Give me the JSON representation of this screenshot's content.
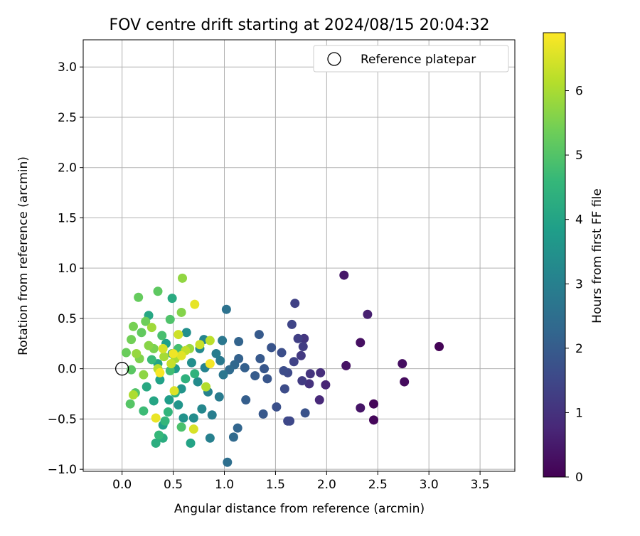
{
  "chart_data": {
    "type": "scatter",
    "title": "FOV centre drift starting at 2024/08/15 20:04:32",
    "xlabel": "Angular distance from reference (arcmin)",
    "ylabel": "Rotation from reference (arcmin)",
    "xlim": [
      -0.38,
      3.84
    ],
    "ylim": [
      -1.02,
      3.27
    ],
    "x_ticks": [
      0.0,
      0.5,
      1.0,
      1.5,
      2.0,
      2.5,
      3.0,
      3.5
    ],
    "x_tick_labels": [
      "0.0",
      "0.5",
      "1.0",
      "1.5",
      "2.0",
      "2.5",
      "3.0",
      "3.5"
    ],
    "y_ticks": [
      -1.0,
      -0.5,
      0.0,
      0.5,
      1.0,
      1.5,
      2.0,
      2.5,
      3.0
    ],
    "y_tick_labels": [
      "−1.0",
      "−0.5",
      "0.0",
      "0.5",
      "1.0",
      "1.5",
      "2.0",
      "2.5",
      "3.0"
    ],
    "grid": true,
    "legend": {
      "placement": "top-right",
      "entries": [
        "Reference platepar"
      ]
    },
    "reference_point": {
      "x": 0.0,
      "y": 0.0,
      "label": "Reference platepar"
    },
    "colorbar": {
      "label": "Hours from first FF file",
      "colormap": "viridis",
      "range": [
        0,
        6.9
      ],
      "ticks": [
        0,
        1,
        2,
        3,
        4,
        5,
        6
      ],
      "tick_labels": [
        "0",
        "1",
        "2",
        "3",
        "4",
        "5",
        "6"
      ]
    },
    "colormap_stops": [
      "#440154",
      "#482878",
      "#3e4989",
      "#31688e",
      "#26828e",
      "#1f9e89",
      "#35b779",
      "#6ece58",
      "#b5de2b",
      "#fde725"
    ],
    "series": [
      {
        "points": [
          {
            "x": 3.1,
            "y": 0.22,
            "h": 0.05
          },
          {
            "x": 2.46,
            "y": -0.35,
            "h": 0.1
          },
          {
            "x": 2.46,
            "y": -0.51,
            "h": 0.12
          },
          {
            "x": 2.76,
            "y": -0.13,
            "h": 0.2
          },
          {
            "x": 2.74,
            "y": 0.05,
            "h": 0.25
          },
          {
            "x": 2.33,
            "y": 0.26,
            "h": 0.3
          },
          {
            "x": 2.19,
            "y": 0.03,
            "h": 0.35
          },
          {
            "x": 2.33,
            "y": -0.39,
            "h": 0.4
          },
          {
            "x": 2.17,
            "y": 0.93,
            "h": 0.45
          },
          {
            "x": 2.4,
            "y": 0.54,
            "h": 0.6
          },
          {
            "x": 1.99,
            "y": -0.16,
            "h": 0.7
          },
          {
            "x": 1.93,
            "y": -0.31,
            "h": 0.8
          },
          {
            "x": 1.94,
            "y": -0.04,
            "h": 0.9
          },
          {
            "x": 1.83,
            "y": -0.15,
            "h": 1.0
          },
          {
            "x": 1.84,
            "y": -0.05,
            "h": 1.05
          },
          {
            "x": 1.78,
            "y": 0.3,
            "h": 1.1
          },
          {
            "x": 1.75,
            "y": 0.13,
            "h": 1.15
          },
          {
            "x": 1.76,
            "y": -0.12,
            "h": 1.2
          },
          {
            "x": 1.77,
            "y": 0.22,
            "h": 1.25
          },
          {
            "x": 1.72,
            "y": 0.3,
            "h": 1.3
          },
          {
            "x": 1.69,
            "y": 0.65,
            "h": 1.35
          },
          {
            "x": 1.68,
            "y": 0.07,
            "h": 1.4
          },
          {
            "x": 1.66,
            "y": 0.44,
            "h": 1.45
          },
          {
            "x": 1.62,
            "y": -0.52,
            "h": 1.5
          },
          {
            "x": 1.64,
            "y": -0.52,
            "h": 1.52
          },
          {
            "x": 1.62,
            "y": -0.04,
            "h": 1.55
          },
          {
            "x": 1.59,
            "y": -0.2,
            "h": 1.6
          },
          {
            "x": 1.58,
            "y": -0.02,
            "h": 1.62
          },
          {
            "x": 1.56,
            "y": 0.16,
            "h": 1.65
          },
          {
            "x": 1.51,
            "y": -0.38,
            "h": 1.7
          },
          {
            "x": 1.79,
            "y": -0.44,
            "h": 1.75
          },
          {
            "x": 1.46,
            "y": 0.21,
            "h": 1.8
          },
          {
            "x": 1.42,
            "y": -0.1,
            "h": 1.85
          },
          {
            "x": 1.39,
            "y": 0.0,
            "h": 1.88
          },
          {
            "x": 1.38,
            "y": -0.45,
            "h": 1.9
          },
          {
            "x": 1.35,
            "y": 0.1,
            "h": 1.92
          },
          {
            "x": 1.34,
            "y": 0.34,
            "h": 1.95
          },
          {
            "x": 1.3,
            "y": -0.07,
            "h": 2.0
          },
          {
            "x": 1.21,
            "y": -0.31,
            "h": 2.05
          },
          {
            "x": 1.2,
            "y": 0.01,
            "h": 2.1
          },
          {
            "x": 1.14,
            "y": 0.1,
            "h": 2.15
          },
          {
            "x": 1.14,
            "y": 0.27,
            "h": 2.2
          },
          {
            "x": 1.13,
            "y": -0.59,
            "h": 2.25
          },
          {
            "x": 1.1,
            "y": 0.04,
            "h": 2.3
          },
          {
            "x": 1.09,
            "y": -0.68,
            "h": 2.35
          },
          {
            "x": 1.05,
            "y": -0.01,
            "h": 2.4
          },
          {
            "x": 1.03,
            "y": -0.93,
            "h": 2.5
          },
          {
            "x": 1.02,
            "y": 0.59,
            "h": 2.6
          },
          {
            "x": 0.99,
            "y": -0.06,
            "h": 2.7
          },
          {
            "x": 0.98,
            "y": 0.28,
            "h": 2.75
          },
          {
            "x": 0.96,
            "y": 0.08,
            "h": 2.8
          },
          {
            "x": 0.95,
            "y": -0.28,
            "h": 2.85
          },
          {
            "x": 0.92,
            "y": 0.15,
            "h": 2.9
          },
          {
            "x": 0.88,
            "y": -0.46,
            "h": 2.95
          },
          {
            "x": 0.86,
            "y": -0.69,
            "h": 3.0
          },
          {
            "x": 0.84,
            "y": -0.23,
            "h": 3.05
          },
          {
            "x": 0.81,
            "y": 0.01,
            "h": 3.1
          },
          {
            "x": 0.8,
            "y": 0.29,
            "h": 3.15
          },
          {
            "x": 0.78,
            "y": -0.4,
            "h": 3.2
          },
          {
            "x": 0.76,
            "y": 0.2,
            "h": 3.25
          },
          {
            "x": 0.74,
            "y": -0.13,
            "h": 3.3
          },
          {
            "x": 0.7,
            "y": -0.49,
            "h": 3.35
          },
          {
            "x": 0.68,
            "y": 0.06,
            "h": 3.4
          },
          {
            "x": 0.63,
            "y": 0.36,
            "h": 3.45
          },
          {
            "x": 0.6,
            "y": -0.49,
            "h": 3.5
          },
          {
            "x": 0.58,
            "y": -0.2,
            "h": 3.55
          },
          {
            "x": 0.55,
            "y": -0.36,
            "h": 3.6
          },
          {
            "x": 0.52,
            "y": 0.0,
            "h": 3.7
          },
          {
            "x": 0.49,
            "y": 0.15,
            "h": 3.75
          },
          {
            "x": 0.46,
            "y": -0.31,
            "h": 3.8
          },
          {
            "x": 0.43,
            "y": 0.25,
            "h": 3.85
          },
          {
            "x": 0.4,
            "y": -0.56,
            "h": 3.9
          },
          {
            "x": 0.37,
            "y": -0.11,
            "h": 3.95
          },
          {
            "x": 0.35,
            "y": 0.05,
            "h": 4.0
          },
          {
            "x": 0.67,
            "y": -0.74,
            "h": 4.0
          },
          {
            "x": 0.31,
            "y": -0.32,
            "h": 4.05
          },
          {
            "x": 0.26,
            "y": 0.53,
            "h": 4.1
          },
          {
            "x": 0.24,
            "y": -0.18,
            "h": 4.15
          },
          {
            "x": 0.49,
            "y": 0.7,
            "h": 4.2
          },
          {
            "x": 0.4,
            "y": -0.69,
            "h": 4.25
          },
          {
            "x": 0.33,
            "y": -0.74,
            "h": 4.3
          },
          {
            "x": 0.52,
            "y": -0.24,
            "h": 4.35
          },
          {
            "x": 0.62,
            "y": -0.1,
            "h": 4.4
          },
          {
            "x": 0.71,
            "y": -0.05,
            "h": 4.45
          },
          {
            "x": 0.45,
            "y": -0.43,
            "h": 4.5
          },
          {
            "x": 0.42,
            "y": -0.52,
            "h": 4.55
          },
          {
            "x": 0.36,
            "y": -0.66,
            "h": 4.6
          },
          {
            "x": 0.29,
            "y": 0.09,
            "h": 4.65
          },
          {
            "x": 0.21,
            "y": -0.42,
            "h": 4.7
          },
          {
            "x": 0.47,
            "y": -0.02,
            "h": 4.75
          },
          {
            "x": 0.55,
            "y": 0.2,
            "h": 4.8
          },
          {
            "x": 0.39,
            "y": 0.33,
            "h": 4.85
          },
          {
            "x": 0.58,
            "y": -0.58,
            "h": 4.9
          },
          {
            "x": 0.47,
            "y": 0.49,
            "h": 4.95
          },
          {
            "x": 0.13,
            "y": -0.24,
            "h": 5.0
          },
          {
            "x": 0.08,
            "y": -0.35,
            "h": 5.05
          },
          {
            "x": 0.09,
            "y": -0.01,
            "h": 5.1
          },
          {
            "x": 0.35,
            "y": 0.77,
            "h": 5.15
          },
          {
            "x": 0.19,
            "y": 0.36,
            "h": 5.2
          },
          {
            "x": 0.16,
            "y": 0.71,
            "h": 5.25
          },
          {
            "x": 0.04,
            "y": 0.16,
            "h": 5.3
          },
          {
            "x": 0.23,
            "y": 0.47,
            "h": 5.35
          },
          {
            "x": 0.09,
            "y": 0.29,
            "h": 5.4
          },
          {
            "x": 0.11,
            "y": 0.42,
            "h": 5.45
          },
          {
            "x": 0.31,
            "y": 0.2,
            "h": 5.5
          },
          {
            "x": 0.17,
            "y": 0.1,
            "h": 5.55
          },
          {
            "x": 0.58,
            "y": 0.56,
            "h": 5.6
          },
          {
            "x": 0.26,
            "y": 0.23,
            "h": 5.65
          },
          {
            "x": 0.21,
            "y": -0.06,
            "h": 5.7
          },
          {
            "x": 0.59,
            "y": 0.9,
            "h": 5.75
          },
          {
            "x": 0.14,
            "y": 0.15,
            "h": 5.8
          },
          {
            "x": 0.66,
            "y": 0.2,
            "h": 5.85
          },
          {
            "x": 0.29,
            "y": 0.41,
            "h": 5.9
          },
          {
            "x": 0.41,
            "y": 0.12,
            "h": 5.95
          },
          {
            "x": 0.52,
            "y": 0.1,
            "h": 6.0
          },
          {
            "x": 0.11,
            "y": -0.26,
            "h": 6.05
          },
          {
            "x": 0.82,
            "y": -0.18,
            "h": 6.1
          },
          {
            "x": 0.35,
            "y": 0.0,
            "h": 6.15
          },
          {
            "x": 0.86,
            "y": 0.28,
            "h": 6.2
          },
          {
            "x": 0.62,
            "y": 0.18,
            "h": 6.25
          },
          {
            "x": 0.48,
            "y": 0.05,
            "h": 6.3
          },
          {
            "x": 0.76,
            "y": 0.24,
            "h": 6.35
          },
          {
            "x": 0.55,
            "y": 0.34,
            "h": 6.4
          },
          {
            "x": 0.4,
            "y": 0.2,
            "h": 6.45
          },
          {
            "x": 0.7,
            "y": -0.6,
            "h": 6.5
          },
          {
            "x": 0.51,
            "y": -0.22,
            "h": 6.55
          },
          {
            "x": 0.58,
            "y": 0.13,
            "h": 6.6
          },
          {
            "x": 0.71,
            "y": 0.64,
            "h": 6.65
          },
          {
            "x": 0.33,
            "y": -0.49,
            "h": 6.7
          },
          {
            "x": 0.5,
            "y": 0.15,
            "h": 6.75
          },
          {
            "x": 0.86,
            "y": 0.05,
            "h": 6.8
          },
          {
            "x": 0.37,
            "y": -0.04,
            "h": 6.85
          }
        ]
      }
    ]
  }
}
